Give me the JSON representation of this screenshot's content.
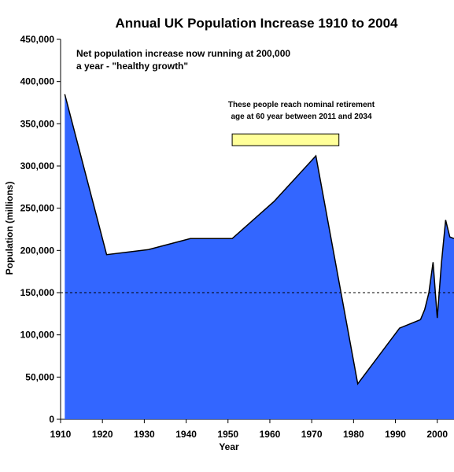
{
  "chart_data": {
    "type": "area",
    "title": "Annual UK Population Increase 1910 to 2004",
    "xlabel": "Year",
    "ylabel": "Population (millions)",
    "xlim": [
      1910,
      2004
    ],
    "ylim": [
      0,
      450000
    ],
    "x_ticks": [
      1910,
      1920,
      1930,
      1940,
      1950,
      1960,
      1970,
      1980,
      1990,
      2000
    ],
    "y_ticks": [
      0,
      50000,
      100000,
      150000,
      200000,
      250000,
      300000,
      350000,
      400000,
      450000
    ],
    "x_tick_labels": [
      "1910",
      "1920",
      "1930",
      "1940",
      "1950",
      "1960",
      "1970",
      "1980",
      "1990",
      "2000"
    ],
    "y_tick_labels": [
      "0",
      "50,000",
      "100,000",
      "150,000",
      "200,000",
      "250,000",
      "300,000",
      "350,000",
      "400,000",
      "450,000"
    ],
    "grid": false,
    "fill_color": "#3366ff",
    "series": [
      {
        "x": [
          1911,
          1921,
          1931,
          1941,
          1951,
          1961,
          1971,
          1981,
          1991,
          1996,
          1997,
          1998,
          1999,
          2000,
          2001,
          2002,
          2003,
          2004
        ],
        "values": [
          385000,
          195000,
          201000,
          214000,
          214000,
          258000,
          312000,
          42000,
          108000,
          118000,
          130000,
          150000,
          186000,
          120000,
          185000,
          236000,
          216000,
          214000
        ]
      }
    ],
    "reference_line": {
      "y": 150000,
      "style": "dashed",
      "color": "#000000"
    },
    "annotations": {
      "growth_text_line1": "Net population increase now running at 200,000",
      "growth_text_line2": "a year - \"healthy growth\"",
      "retirement_text_line1": "These people reach nominal retirement",
      "retirement_text_line2": "age at 60 year between 2011 and 2034",
      "highlight_box": {
        "x_start": 1951,
        "x_end": 1976.5,
        "y_low": 324000,
        "y_high": 338000,
        "fill": "#ffff99",
        "stroke": "#000000"
      }
    }
  }
}
